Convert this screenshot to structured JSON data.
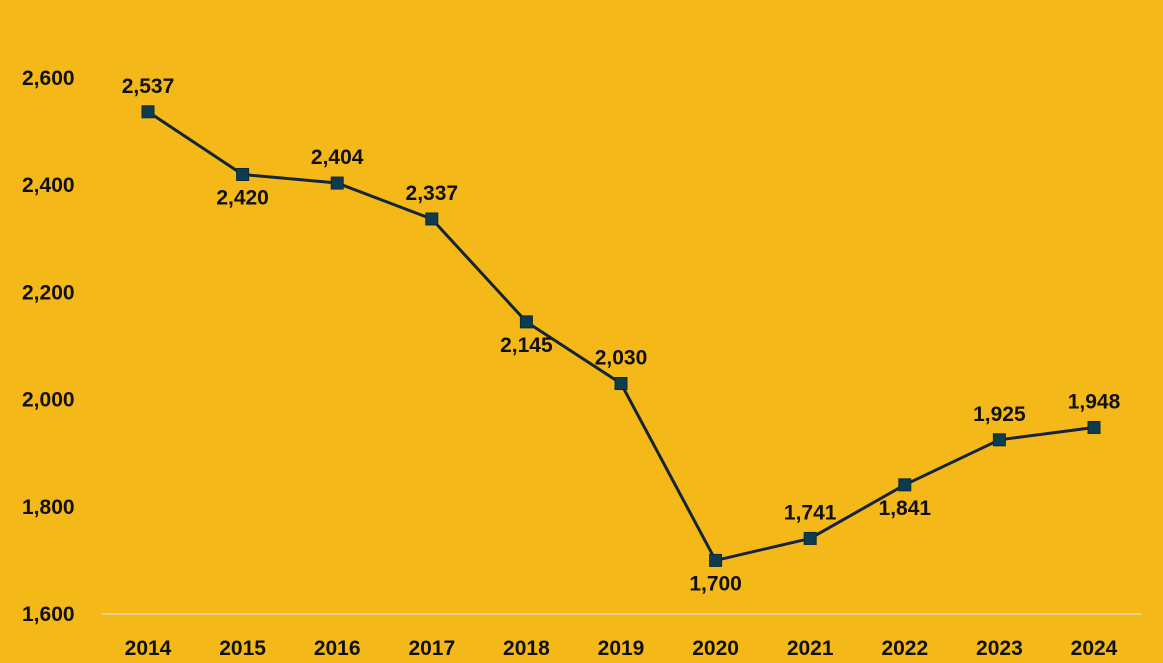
{
  "colors": {
    "background": "#F5B819",
    "line": "#14243A",
    "marker": "#0E3B4D",
    "axis": "#E8D9A8",
    "text": "#111111"
  },
  "chart_data": {
    "type": "line",
    "title": "",
    "xlabel": "",
    "ylabel": "",
    "x": [
      "2014",
      "2015",
      "2016",
      "2017",
      "2018",
      "2019",
      "2020",
      "2021",
      "2022",
      "2023",
      "2024"
    ],
    "series": [
      {
        "values": [
          2537,
          2420,
          2404,
          2337,
          2145,
          2030,
          1700,
          1741,
          1841,
          1925,
          1948
        ],
        "value_labels": [
          "2,537",
          "2,420",
          "2,404",
          "2,337",
          "2,145",
          "2,030",
          "1,700",
          "1,741",
          "1,841",
          "1,925",
          "1,948"
        ],
        "label_positions": [
          "above",
          "below",
          "above",
          "above",
          "below",
          "above",
          "below",
          "above",
          "below",
          "above",
          "above"
        ],
        "marker": "square"
      }
    ],
    "ylim": [
      1600,
      2600
    ],
    "y_ticks": [
      1600,
      1800,
      2000,
      2200,
      2400,
      2600
    ],
    "y_tick_labels": [
      "1,600",
      "1,800",
      "2,000",
      "2,200",
      "2,400",
      "2,600"
    ],
    "grid": false,
    "legend": "none"
  }
}
